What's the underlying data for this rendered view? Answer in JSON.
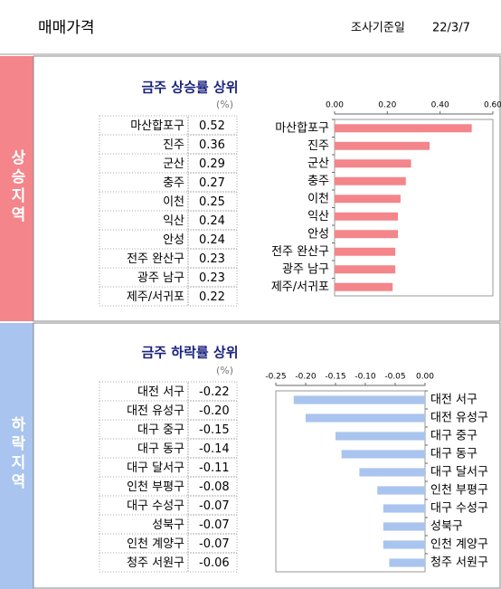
{
  "header": {
    "title": "매매가격",
    "date_label": "조사기준일",
    "date": "22/3/7"
  },
  "sections": [
    {
      "label": "상승지역"
    },
    {
      "label": "하락지역"
    }
  ],
  "chart_data": [
    {
      "type": "bar",
      "title": "금주 상승률 상위",
      "unit": "(%)",
      "color": "#f4858a",
      "categories": [
        "마산합포구",
        "진주",
        "군산",
        "충주",
        "이천",
        "익산",
        "안성",
        "전주 완산구",
        "광주 남구",
        "제주/서귀포"
      ],
      "values": [
        0.52,
        0.36,
        0.29,
        0.27,
        0.25,
        0.24,
        0.24,
        0.23,
        0.23,
        0.22
      ],
      "value_labels": [
        "0.52",
        "0.36",
        "0.29",
        "0.27",
        "0.25",
        "0.24",
        "0.24",
        "0.23",
        "0.23",
        "0.22"
      ],
      "xlim": [
        0,
        0.6
      ],
      "xticks": [
        {
          "value": 0,
          "label": "0.00"
        },
        {
          "value": 0.2,
          "label": "0.20"
        },
        {
          "value": 0.4,
          "label": "0.40"
        },
        {
          "value": 0.6,
          "label": "0.60"
        }
      ]
    },
    {
      "type": "bar",
      "title": "금주 하락률 상위",
      "unit": "(%)",
      "color": "#a9c4ee",
      "categories": [
        "대전 서구",
        "대전 유성구",
        "대구 중구",
        "대구 동구",
        "대구 달서구",
        "인천 부평구",
        "대구 수성구",
        "성북구",
        "인천 계양구",
        "청주 서원구"
      ],
      "values": [
        -0.22,
        -0.2,
        -0.15,
        -0.14,
        -0.11,
        -0.08,
        -0.07,
        -0.07,
        -0.07,
        -0.06
      ],
      "value_labels": [
        "-0.22",
        "-0.20",
        "-0.15",
        "-0.14",
        "-0.11",
        "-0.08",
        "-0.07",
        "-0.07",
        "-0.07",
        "-0.06"
      ],
      "xlim": [
        -0.25,
        0
      ],
      "xticks": [
        {
          "value": -0.25,
          "label": "-0.25"
        },
        {
          "value": -0.2,
          "label": "-0.20"
        },
        {
          "value": -0.15,
          "label": "-0.15"
        },
        {
          "value": -0.1,
          "label": "-0.10"
        },
        {
          "value": -0.05,
          "label": "-0.05"
        },
        {
          "value": 0,
          "label": "0.00"
        }
      ]
    }
  ]
}
